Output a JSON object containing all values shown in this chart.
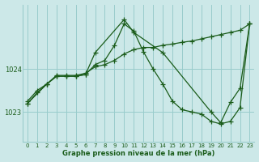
{
  "bg_color": "#cce8e8",
  "line_color": "#1a5c1a",
  "grid_color": "#99cccc",
  "title": "Graphe pression niveau de la mer (hPa)",
  "ylabel_ticks": [
    1023,
    1024
  ],
  "ylim": [
    1022.3,
    1025.5
  ],
  "xlim": [
    -0.5,
    23.5
  ],
  "line1_x": [
    0,
    1,
    2,
    3,
    4,
    5,
    6,
    7,
    8,
    9,
    10,
    11,
    12,
    13,
    14,
    15,
    16,
    17,
    18,
    19,
    20,
    21,
    22,
    23
  ],
  "line1_y": [
    1023.25,
    1023.5,
    1023.65,
    1023.85,
    1023.85,
    1023.85,
    1023.9,
    1024.05,
    1024.1,
    1024.2,
    1024.35,
    1024.45,
    1024.5,
    1024.5,
    1024.55,
    1024.58,
    1024.62,
    1024.65,
    1024.7,
    1024.75,
    1024.8,
    1024.85,
    1024.9,
    1025.05
  ],
  "line2_x": [
    0,
    1,
    2,
    3,
    4,
    5,
    6,
    7,
    8,
    9,
    10,
    11,
    12,
    13,
    14,
    15,
    16,
    17,
    18,
    19,
    20,
    21,
    22,
    23
  ],
  "line2_y": [
    1023.2,
    1023.45,
    1023.65,
    1023.83,
    1023.83,
    1023.83,
    1023.87,
    1024.1,
    1024.2,
    1024.55,
    1025.05,
    1024.88,
    1024.4,
    1024.0,
    1023.65,
    1023.25,
    1023.05,
    1023.0,
    1022.95,
    1022.78,
    1022.72,
    1022.78,
    1023.1,
    1025.05
  ],
  "line3_x": [
    0,
    2,
    3,
    4,
    5,
    6,
    7,
    10,
    11,
    14,
    19,
    20,
    21,
    22,
    23
  ],
  "line3_y": [
    1023.2,
    1023.65,
    1023.83,
    1023.83,
    1023.83,
    1023.87,
    1024.38,
    1025.15,
    1024.85,
    1024.38,
    1023.0,
    1022.75,
    1023.22,
    1023.55,
    1025.05
  ],
  "marker": "+",
  "markersize": 4,
  "linewidth": 0.9
}
